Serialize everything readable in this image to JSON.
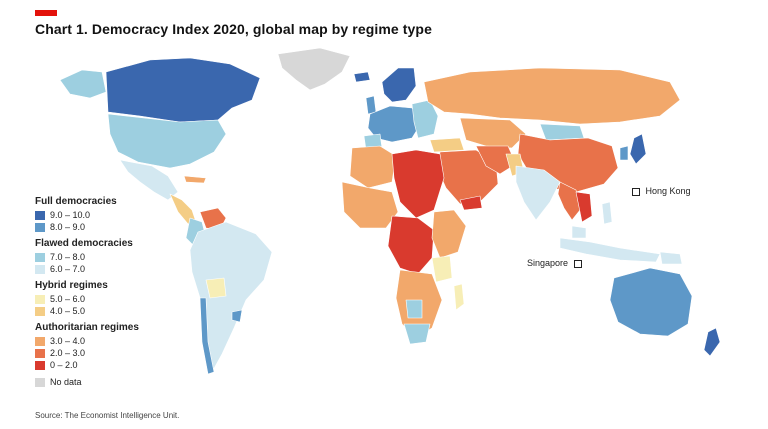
{
  "header": {
    "title": "Chart 1. Democracy Index 2020, global map by regime type",
    "accent_color": "#e3120b"
  },
  "legend": {
    "groups": [
      {
        "heading": "Full democracies",
        "items": [
          {
            "label": "9.0 – 10.0",
            "color": "#3a67ae"
          },
          {
            "label": "8.0 – 9.0",
            "color": "#5e98c8"
          }
        ]
      },
      {
        "heading": "Flawed democracies",
        "items": [
          {
            "label": "7.0 – 8.0",
            "color": "#9dcfe0"
          },
          {
            "label": "6.0 – 7.0",
            "color": "#d3e8f1"
          }
        ]
      },
      {
        "heading": "Hybrid regimes",
        "items": [
          {
            "label": "5.0 – 6.0",
            "color": "#f7eeb6"
          },
          {
            "label": "4.0 – 5.0",
            "color": "#f4cd85"
          }
        ]
      },
      {
        "heading": "Authoritarian regimes",
        "items": [
          {
            "label": "3.0 – 4.0",
            "color": "#f2a86b"
          },
          {
            "label": "2.0 – 3.0",
            "color": "#e8724a"
          },
          {
            "label": "0 – 2.0",
            "color": "#d93a2e"
          }
        ]
      }
    ],
    "no_data": {
      "label": "No data",
      "color": "#d7d7d7"
    }
  },
  "callouts": {
    "hong_kong": "Hong Kong",
    "singapore": "Singapore"
  },
  "source": "Source: The Economist Intelligence Unit."
}
